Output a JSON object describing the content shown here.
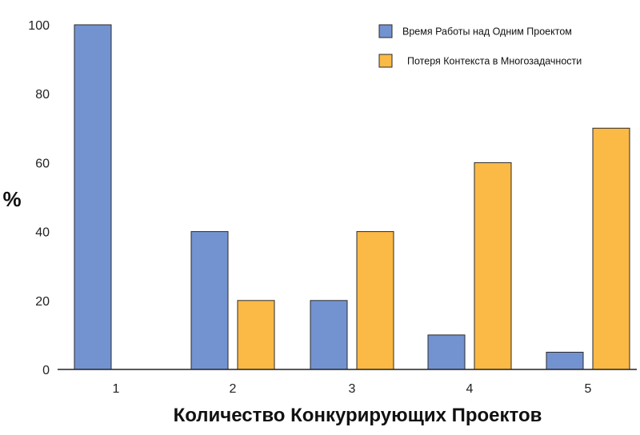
{
  "chart_data": {
    "type": "bar",
    "categories": [
      "1",
      "2",
      "3",
      "4",
      "5"
    ],
    "series": [
      {
        "name": "Время Работы над Одним Проектом",
        "color": "#7393d0",
        "values": [
          100,
          40,
          20,
          10,
          5
        ]
      },
      {
        "name": "Потеря Контекста в Многозадачности",
        "color": "#fbb946",
        "values": [
          0,
          20,
          40,
          60,
          70
        ]
      }
    ],
    "yticks": [
      "0",
      "20",
      "40",
      "60",
      "80",
      "100"
    ],
    "ylim": [
      0,
      100
    ],
    "ylabel": "%",
    "xlabel": "Количество Конкурирующих Проектов",
    "legend": "top-right",
    "grid": false
  }
}
